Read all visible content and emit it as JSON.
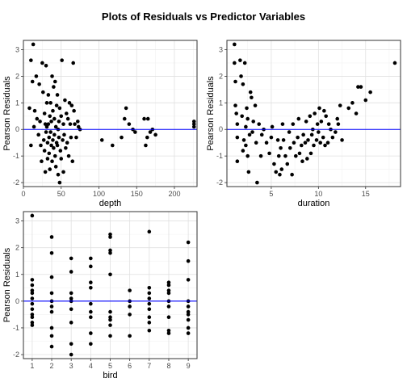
{
  "title": "Plots of Residuals vs Predictor Variables",
  "colors": {
    "point": "#000000",
    "hline": "#0000ff",
    "grid_major": "#e0e0e0",
    "grid_minor": "#f2f2f2",
    "panel_border": "#333333",
    "tick_text": "#4d4d4d"
  },
  "chart_data": [
    {
      "type": "scatter",
      "xlabel": "depth",
      "ylabel": "Pearson Residuals",
      "xlim": [
        0,
        230
      ],
      "ylim": [
        -2.15,
        3.35
      ],
      "x_ticks": [
        0,
        50,
        100,
        150,
        200
      ],
      "y_ticks": [
        -2,
        -1,
        0,
        1,
        2,
        3
      ],
      "hline": 0,
      "grid": true,
      "points": [
        [
          8,
          0.8
        ],
        [
          10,
          2.6
        ],
        [
          12,
          1.8
        ],
        [
          13,
          3.2
        ],
        [
          15,
          0.7
        ],
        [
          14,
          0.1
        ],
        [
          10,
          -0.6
        ],
        [
          17,
          2.0
        ],
        [
          18,
          0.4
        ],
        [
          20,
          -0.2
        ],
        [
          21,
          1.7
        ],
        [
          22,
          0.3
        ],
        [
          23,
          -0.6
        ],
        [
          24,
          -1.2
        ],
        [
          25,
          2.5
        ],
        [
          26,
          1.4
        ],
        [
          27,
          -0.4
        ],
        [
          28,
          0.6
        ],
        [
          28,
          -0.8
        ],
        [
          29,
          0.2
        ],
        [
          29,
          -1.6
        ],
        [
          30,
          2.4
        ],
        [
          30,
          -0.1
        ],
        [
          31,
          1.0
        ],
        [
          31,
          0.1
        ],
        [
          32,
          -0.5
        ],
        [
          32,
          -1.1
        ],
        [
          33,
          1.3
        ],
        [
          33,
          0.2
        ],
        [
          34,
          -0.3
        ],
        [
          34,
          -0.9
        ],
        [
          35,
          0.5
        ],
        [
          35,
          -1.5
        ],
        [
          36,
          1.0
        ],
        [
          36,
          -0.1
        ],
        [
          37,
          -0.6
        ],
        [
          37,
          0.3
        ],
        [
          38,
          2.0
        ],
        [
          38,
          -1.2
        ],
        [
          39,
          0.7
        ],
        [
          39,
          -0.4
        ],
        [
          40,
          1.6
        ],
        [
          40,
          -0.7
        ],
        [
          41,
          -0.2
        ],
        [
          41,
          0.4
        ],
        [
          42,
          -1.0
        ],
        [
          42,
          1.8
        ],
        [
          43,
          -1.4
        ],
        [
          43,
          0.1
        ],
        [
          44,
          -0.5
        ],
        [
          44,
          0.9
        ],
        [
          45,
          1.3
        ],
        [
          45,
          -0.6
        ],
        [
          46,
          0.0
        ],
        [
          46,
          -1.7
        ],
        [
          47,
          0.3
        ],
        [
          47,
          -0.3
        ],
        [
          48,
          0.8
        ],
        [
          48,
          -2.0
        ],
        [
          49,
          -0.8
        ],
        [
          50,
          0.5
        ],
        [
          50,
          -1.1
        ],
        [
          51,
          2.6
        ],
        [
          52,
          -0.4
        ],
        [
          53,
          0.2
        ],
        [
          53,
          -1.6
        ],
        [
          54,
          -0.2
        ],
        [
          55,
          1.1
        ],
        [
          56,
          -0.7
        ],
        [
          57,
          0.6
        ],
        [
          58,
          -0.5
        ],
        [
          59,
          0.4
        ],
        [
          60,
          -1.0
        ],
        [
          61,
          1.0
        ],
        [
          62,
          0.2
        ],
        [
          63,
          -0.3
        ],
        [
          64,
          0.9
        ],
        [
          65,
          -1.2
        ],
        [
          66,
          2.5
        ],
        [
          67,
          0.7
        ],
        [
          68,
          0.2
        ],
        [
          70,
          -0.3
        ],
        [
          72,
          0.3
        ],
        [
          73,
          0.1
        ],
        [
          75,
          0.0
        ],
        [
          104,
          -0.4
        ],
        [
          118,
          -0.6
        ],
        [
          130,
          -0.3
        ],
        [
          134,
          0.4
        ],
        [
          136,
          0.8
        ],
        [
          140,
          0.2
        ],
        [
          145,
          0.0
        ],
        [
          148,
          -0.1
        ],
        [
          160,
          0.4
        ],
        [
          162,
          -0.6
        ],
        [
          164,
          -0.3
        ],
        [
          165,
          0.4
        ],
        [
          168,
          -0.1
        ],
        [
          171,
          0.0
        ],
        [
          175,
          -0.2
        ],
        [
          226,
          0.3
        ],
        [
          226,
          0.1
        ],
        [
          226,
          0.2
        ]
      ]
    },
    {
      "type": "scatter",
      "xlabel": "duration",
      "ylabel": "Pearson Residuals",
      "xlim": [
        0.3,
        18.7
      ],
      "ylim": [
        -2.15,
        3.35
      ],
      "x_ticks": [
        5,
        10,
        15
      ],
      "y_ticks": [
        -2,
        -1,
        0,
        1,
        2,
        3
      ],
      "hline": 0,
      "grid": true,
      "points": [
        [
          1.1,
          3.2
        ],
        [
          1.1,
          2.5
        ],
        [
          1.2,
          1.8
        ],
        [
          1.2,
          0.9
        ],
        [
          1.3,
          0.6
        ],
        [
          1.4,
          0.2
        ],
        [
          1.4,
          -0.3
        ],
        [
          1.4,
          -1.2
        ],
        [
          1.7,
          2.6
        ],
        [
          1.8,
          2.0
        ],
        [
          1.9,
          0.5
        ],
        [
          2.0,
          1.7
        ],
        [
          2.0,
          -0.8
        ],
        [
          2.1,
          -0.4
        ],
        [
          2.2,
          2.5
        ],
        [
          2.3,
          0.1
        ],
        [
          2.3,
          -0.6
        ],
        [
          2.4,
          0.8
        ],
        [
          2.5,
          0.4
        ],
        [
          2.5,
          -1.0
        ],
        [
          2.6,
          -1.6
        ],
        [
          2.7,
          -0.2
        ],
        [
          2.8,
          1.4
        ],
        [
          2.9,
          1.2
        ],
        [
          3.0,
          -0.1
        ],
        [
          3.1,
          0.3
        ],
        [
          3.3,
          0.9
        ],
        [
          3.4,
          -0.5
        ],
        [
          3.5,
          -2.0
        ],
        [
          3.7,
          0.2
        ],
        [
          3.9,
          -1.0
        ],
        [
          4.0,
          -0.2
        ],
        [
          4.2,
          0.0
        ],
        [
          4.5,
          -0.5
        ],
        [
          4.8,
          -0.9
        ],
        [
          5.0,
          -0.3
        ],
        [
          5.1,
          0.1
        ],
        [
          5.3,
          -1.3
        ],
        [
          5.5,
          -1.6
        ],
        [
          5.7,
          -0.4
        ],
        [
          5.8,
          -1.0
        ],
        [
          5.9,
          -1.7
        ],
        [
          6.0,
          -0.7
        ],
        [
          6.1,
          -1.5
        ],
        [
          6.2,
          0.2
        ],
        [
          6.3,
          -0.4
        ],
        [
          6.5,
          -1.0
        ],
        [
          6.7,
          -1.3
        ],
        [
          6.9,
          -0.1
        ],
        [
          7.0,
          -0.7
        ],
        [
          7.2,
          -1.7
        ],
        [
          7.3,
          0.2
        ],
        [
          7.4,
          -0.5
        ],
        [
          7.6,
          -1.0
        ],
        [
          7.8,
          -0.3
        ],
        [
          7.9,
          0.4
        ],
        [
          8.0,
          -0.9
        ],
        [
          8.2,
          -0.6
        ],
        [
          8.3,
          -1.2
        ],
        [
          8.4,
          -0.2
        ],
        [
          8.6,
          -0.5
        ],
        [
          8.7,
          0.3
        ],
        [
          8.8,
          -1.1
        ],
        [
          8.9,
          -0.4
        ],
        [
          9.1,
          0.5
        ],
        [
          9.2,
          -0.9
        ],
        [
          9.3,
          -0.2
        ],
        [
          9.4,
          0.0
        ],
        [
          9.5,
          -0.6
        ],
        [
          9.6,
          0.6
        ],
        [
          9.8,
          -0.4
        ],
        [
          9.9,
          0.2
        ],
        [
          10.0,
          -0.1
        ],
        [
          10.1,
          0.8
        ],
        [
          10.2,
          -0.5
        ],
        [
          10.3,
          0.3
        ],
        [
          10.5,
          -0.3
        ],
        [
          10.6,
          0.7
        ],
        [
          10.7,
          -0.6
        ],
        [
          10.8,
          0.5
        ],
        [
          11.0,
          -0.5
        ],
        [
          11.1,
          0.2
        ],
        [
          11.3,
          0.0
        ],
        [
          11.5,
          -0.3
        ],
        [
          11.8,
          -0.1
        ],
        [
          12.0,
          0.4
        ],
        [
          12.1,
          0.2
        ],
        [
          12.3,
          0.9
        ],
        [
          12.5,
          -0.4
        ],
        [
          13.2,
          0.8
        ],
        [
          13.6,
          1.0
        ],
        [
          14.0,
          0.6
        ],
        [
          14.2,
          1.6
        ],
        [
          14.5,
          1.6
        ],
        [
          15.0,
          1.1
        ],
        [
          15.5,
          1.4
        ],
        [
          18.1,
          2.5
        ]
      ]
    },
    {
      "type": "scatter",
      "xlabel": "bird",
      "ylabel": "Pearson Residuals",
      "xlim": [
        0.55,
        9.45
      ],
      "ylim": [
        -2.15,
        3.35
      ],
      "x_ticks": [
        1,
        2,
        3,
        4,
        5,
        6,
        7,
        8,
        9
      ],
      "y_ticks": [
        -2,
        -1,
        0,
        1,
        2,
        3
      ],
      "hline": 0,
      "grid": true,
      "points": [
        [
          1,
          3.2
        ],
        [
          1,
          0.8
        ],
        [
          1,
          0.6
        ],
        [
          1,
          0.4
        ],
        [
          1,
          0.3
        ],
        [
          1,
          0.1
        ],
        [
          1,
          -0.1
        ],
        [
          1,
          -0.3
        ],
        [
          1,
          -0.5
        ],
        [
          1,
          -0.6
        ],
        [
          1,
          -0.8
        ],
        [
          1,
          -0.9
        ],
        [
          2,
          2.4
        ],
        [
          2,
          1.8
        ],
        [
          2,
          0.9
        ],
        [
          2,
          0.3
        ],
        [
          2,
          0.0
        ],
        [
          2,
          -0.2
        ],
        [
          2,
          -0.4
        ],
        [
          2,
          -1.0
        ],
        [
          2,
          -1.3
        ],
        [
          2,
          -1.7
        ],
        [
          3,
          1.6
        ],
        [
          3,
          1.1
        ],
        [
          3,
          0.3
        ],
        [
          3,
          0.1
        ],
        [
          3,
          0.0
        ],
        [
          3,
          -0.3
        ],
        [
          3,
          -0.8
        ],
        [
          3,
          -1.6
        ],
        [
          3,
          -2.0
        ],
        [
          4,
          1.6
        ],
        [
          4,
          1.3
        ],
        [
          4,
          0.7
        ],
        [
          4,
          0.5
        ],
        [
          4,
          -0.1
        ],
        [
          4,
          -0.4
        ],
        [
          4,
          -0.6
        ],
        [
          4,
          -1.2
        ],
        [
          4,
          -1.6
        ],
        [
          5,
          2.5
        ],
        [
          5,
          2.4
        ],
        [
          5,
          1.9
        ],
        [
          5,
          1.8
        ],
        [
          5,
          1.0
        ],
        [
          5,
          -0.4
        ],
        [
          5,
          -0.6
        ],
        [
          5,
          -0.7
        ],
        [
          5,
          -0.9
        ],
        [
          5,
          -1.3
        ],
        [
          6,
          0.4
        ],
        [
          6,
          0.0
        ],
        [
          6,
          -0.2
        ],
        [
          6,
          -0.5
        ],
        [
          6,
          -1.3
        ],
        [
          7,
          2.6
        ],
        [
          7,
          0.5
        ],
        [
          7,
          0.3
        ],
        [
          7,
          0.1
        ],
        [
          7,
          -0.1
        ],
        [
          7,
          -0.3
        ],
        [
          7,
          -0.6
        ],
        [
          7,
          -0.8
        ],
        [
          7,
          -1.1
        ],
        [
          8,
          0.7
        ],
        [
          8,
          0.6
        ],
        [
          8,
          0.4
        ],
        [
          8,
          0.3
        ],
        [
          8,
          0.0
        ],
        [
          8,
          -0.2
        ],
        [
          8,
          -0.6
        ],
        [
          8,
          -1.1
        ],
        [
          8,
          -1.2
        ],
        [
          9,
          2.2
        ],
        [
          9,
          1.5
        ],
        [
          9,
          0.8
        ],
        [
          9,
          0.0
        ],
        [
          9,
          -0.2
        ],
        [
          9,
          -0.4
        ],
        [
          9,
          -0.5
        ],
        [
          9,
          -0.7
        ],
        [
          9,
          -1.0
        ],
        [
          9,
          -1.2
        ]
      ]
    }
  ]
}
